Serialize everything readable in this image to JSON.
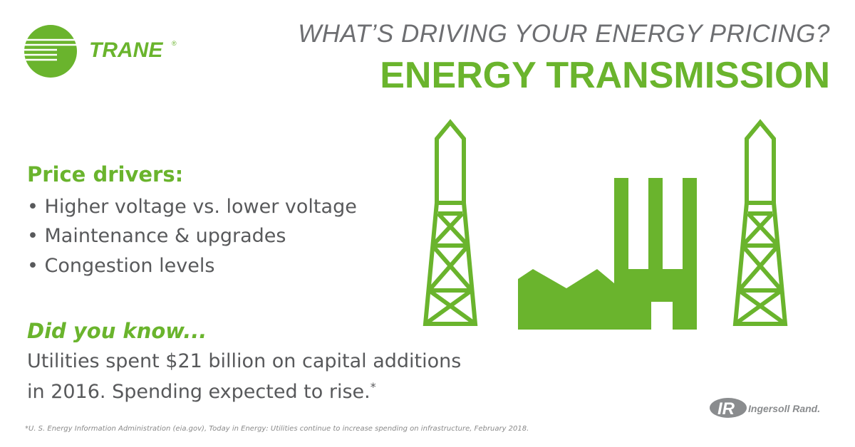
{
  "brand": {
    "name": "TRANE",
    "mark": "®"
  },
  "header": {
    "subtitle": "WHAT’S DRIVING YOUR ENERGY PRICING?",
    "title": "ENERGY TRANSMISSION"
  },
  "drivers": {
    "heading": "Price drivers:",
    "items": [
      "Higher voltage vs. lower voltage",
      "Maintenance & upgrades",
      "Congestion levels"
    ]
  },
  "fact": {
    "heading": "Did you know...",
    "lines": [
      "Utilities spent $21 billion on capital additions",
      "in 2016. Spending expected to rise."
    ],
    "note_mark": "*"
  },
  "footnote": "*U. S. Energy Information Administration (eia.gov), Today in Energy: Utilities continue to increase spending on infrastructure, February 2018.",
  "partner": {
    "mark": "IR",
    "name": "Ingersoll Rand."
  }
}
